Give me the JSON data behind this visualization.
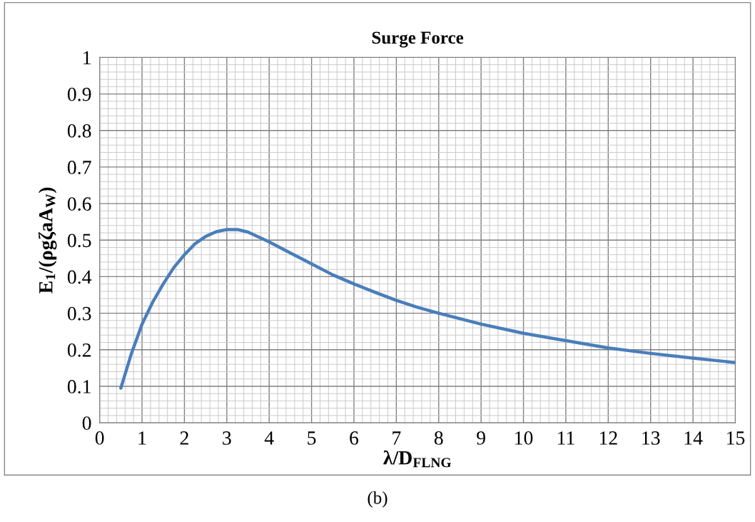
{
  "chart_data": {
    "type": "line",
    "title": "Surge Force",
    "xlabel": "λ/D$_{FLNG}$",
    "ylabel": "E$_{1}$/(ρgζaA$_{W}$)",
    "annotations": [
      "(b)"
    ],
    "series": [
      {
        "color": "#4a7ebb",
        "x": [
          0.5,
          0.75,
          1,
          1.25,
          1.5,
          1.75,
          2,
          2.25,
          2.5,
          2.75,
          3,
          3.25,
          3.5,
          4,
          4.5,
          5,
          5.5,
          6,
          6.5,
          7,
          7.5,
          8,
          9,
          10,
          11,
          12,
          13,
          14,
          15
        ],
        "values": [
          0.095,
          0.19,
          0.27,
          0.33,
          0.38,
          0.425,
          0.46,
          0.49,
          0.51,
          0.523,
          0.529,
          0.529,
          0.522,
          0.495,
          0.465,
          0.435,
          0.405,
          0.38,
          0.357,
          0.335,
          0.316,
          0.3,
          0.27,
          0.245,
          0.225,
          0.205,
          0.19,
          0.177,
          0.165
        ]
      }
    ],
    "xlim": [
      0,
      15
    ],
    "ylim": [
      0,
      1
    ],
    "xticks": [
      0,
      1,
      2,
      3,
      4,
      5,
      6,
      7,
      8,
      9,
      10,
      11,
      12,
      13,
      14,
      15
    ],
    "yticks": [
      0,
      0.1,
      0.2,
      0.3,
      0.4,
      0.5,
      0.6,
      0.7,
      0.8,
      0.9,
      1
    ],
    "grid": true,
    "legend": false,
    "marker": "none",
    "line_style": "solid"
  }
}
